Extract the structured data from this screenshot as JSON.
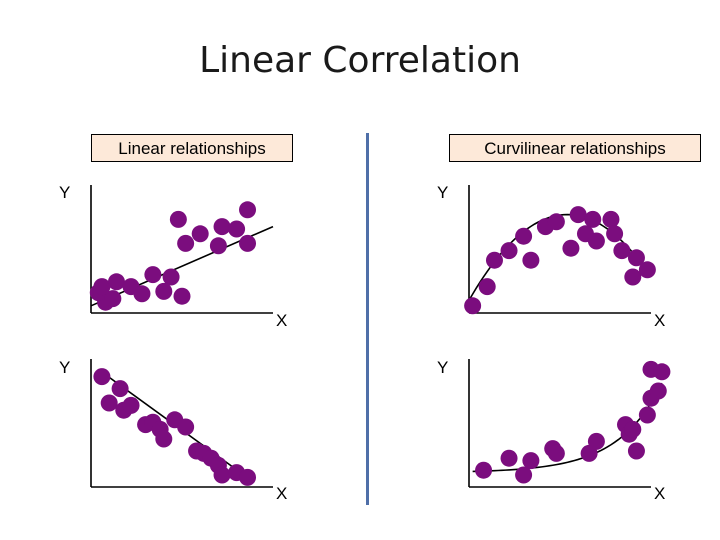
{
  "slide": {
    "title": "Linear Correlation"
  },
  "headers": {
    "linear": "Linear relationships",
    "curvilinear": "Curvilinear relationships"
  },
  "axis_labels": {
    "y": "Y",
    "x": "X"
  },
  "colors": {
    "dot": "#7b0d7e",
    "header_bg": "#fde9d9",
    "divider": "#4f6fa8",
    "axis": "#000000",
    "fit_line": "#000000"
  },
  "chart_data": [
    {
      "type": "scatter",
      "panel": "linear-positive",
      "trend": "linear",
      "points": [
        [
          8,
          9
        ],
        [
          4,
          17
        ],
        [
          12,
          12
        ],
        [
          6,
          22
        ],
        [
          14,
          26
        ],
        [
          22,
          22
        ],
        [
          28,
          16
        ],
        [
          34,
          32
        ],
        [
          44,
          30
        ],
        [
          40,
          18
        ],
        [
          52,
          58
        ],
        [
          60,
          66
        ],
        [
          48,
          78
        ],
        [
          72,
          72
        ],
        [
          70,
          56
        ],
        [
          86,
          58
        ],
        [
          80,
          70
        ],
        [
          86,
          86
        ],
        [
          50,
          14
        ]
      ],
      "fit": [
        [
          0,
          6
        ],
        [
          100,
          72
        ]
      ]
    },
    {
      "type": "scatter",
      "panel": "curvilinear-arch",
      "trend": "quadratic",
      "points": [
        [
          2,
          6
        ],
        [
          10,
          22
        ],
        [
          14,
          44
        ],
        [
          22,
          52
        ],
        [
          30,
          64
        ],
        [
          34,
          44
        ],
        [
          42,
          72
        ],
        [
          48,
          76
        ],
        [
          56,
          54
        ],
        [
          60,
          82
        ],
        [
          64,
          66
        ],
        [
          68,
          78
        ],
        [
          70,
          60
        ],
        [
          78,
          78
        ],
        [
          80,
          66
        ],
        [
          84,
          52
        ],
        [
          92,
          46
        ],
        [
          98,
          36
        ],
        [
          90,
          30
        ]
      ]
    },
    {
      "type": "scatter",
      "panel": "linear-negative",
      "trend": "linear",
      "points": [
        [
          6,
          92
        ],
        [
          10,
          70
        ],
        [
          16,
          82
        ],
        [
          18,
          64
        ],
        [
          22,
          68
        ],
        [
          30,
          52
        ],
        [
          34,
          54
        ],
        [
          38,
          48
        ],
        [
          40,
          40
        ],
        [
          46,
          56
        ],
        [
          52,
          50
        ],
        [
          58,
          30
        ],
        [
          62,
          28
        ],
        [
          66,
          24
        ],
        [
          70,
          18
        ],
        [
          72,
          10
        ],
        [
          80,
          12
        ],
        [
          86,
          8
        ]
      ]
    },
    {
      "type": "scatter",
      "panel": "curvilinear-exponential",
      "trend": "exponential",
      "points": [
        [
          8,
          14
        ],
        [
          22,
          24
        ],
        [
          30,
          10
        ],
        [
          34,
          22
        ],
        [
          46,
          32
        ],
        [
          48,
          28
        ],
        [
          66,
          28
        ],
        [
          70,
          38
        ],
        [
          86,
          52
        ],
        [
          88,
          44
        ],
        [
          90,
          48
        ],
        [
          92,
          30
        ],
        [
          98,
          60
        ],
        [
          100,
          74
        ],
        [
          104,
          80
        ],
        [
          100,
          98
        ],
        [
          106,
          96
        ]
      ]
    }
  ]
}
